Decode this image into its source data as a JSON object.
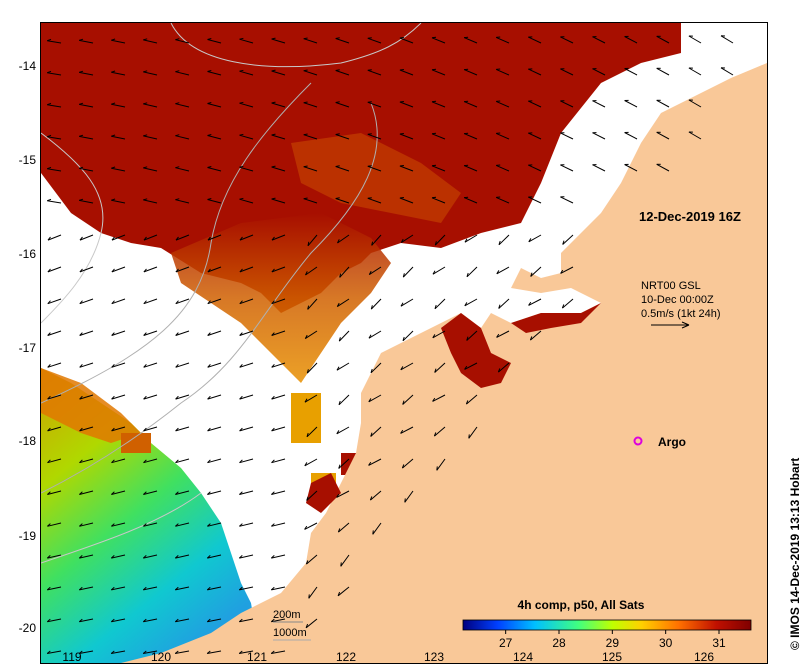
{
  "map": {
    "date_label": "12-Dec-2019 16Z",
    "current_source": "NRT00 GSL",
    "current_time": "10-Dec 00:00Z",
    "vector_scale": "0.5m/s (1kt 24h)",
    "argo_label": "Argo",
    "isobaths": [
      "200m",
      "1000m"
    ],
    "credit": "© IMOS 14-Dec-2019 13:13 Hobart",
    "lon_ticks": [
      "119",
      "120",
      "121",
      "122",
      "123",
      "124",
      "125",
      "126"
    ],
    "lat_ticks": [
      "-14",
      "-15",
      "-16",
      "-17",
      "-18",
      "-19",
      "-20"
    ],
    "colors": {
      "land": "#f9c898",
      "no_data": "#ffffff",
      "sst_high": "#a70f00",
      "argo_marker": "#dd00dd"
    }
  },
  "colorbar": {
    "title": "4h comp, p50, All Sats",
    "range": [
      26.2,
      31.6
    ],
    "tick_labels": [
      "27",
      "28",
      "29",
      "30",
      "31"
    ],
    "stops": [
      "#00007f",
      "#0040ff",
      "#00c0ff",
      "#40ff80",
      "#c0ff00",
      "#ffd000",
      "#ff7000",
      "#c01000",
      "#7f0000"
    ]
  }
}
